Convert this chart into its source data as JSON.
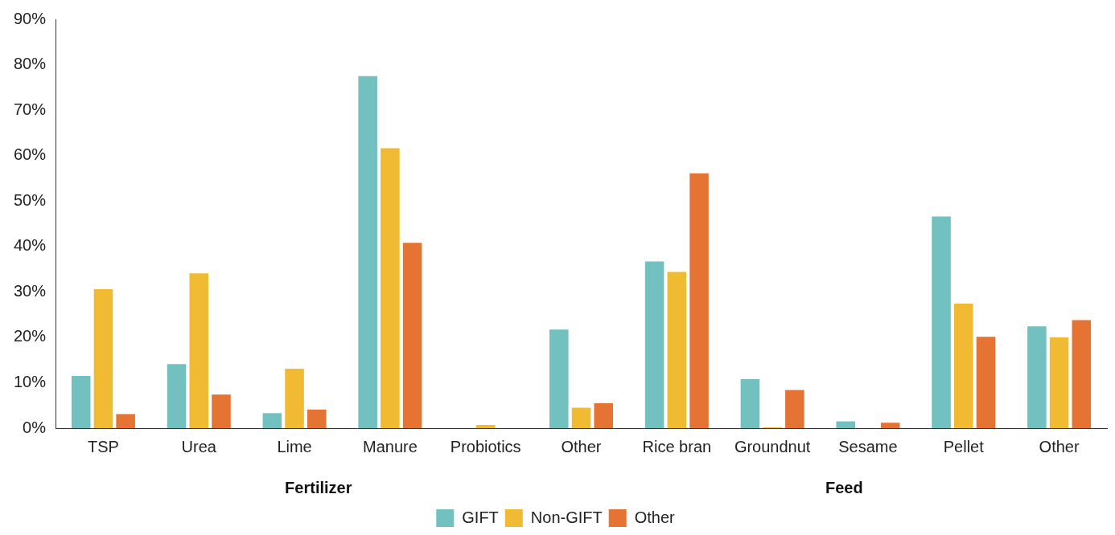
{
  "chart_data": {
    "type": "bar",
    "categories": [
      "TSP",
      "Urea",
      "Lime",
      "Manure",
      "Probiotics",
      "Other",
      "Rice bran",
      "Groundnut",
      "Sesame",
      "Pellet",
      "Other"
    ],
    "series": [
      {
        "name": "GIFT",
        "color": "#72c0bf",
        "values": [
          11.5,
          14.1,
          3.3,
          77.5,
          0,
          21.7,
          36.7,
          10.8,
          1.5,
          46.6,
          22.4
        ]
      },
      {
        "name": "Non-GIFT",
        "color": "#f0bb32",
        "values": [
          30.6,
          34.1,
          13.1,
          61.6,
          0.7,
          4.5,
          34.4,
          0.2,
          0,
          27.4,
          20.0
        ]
      },
      {
        "name": "Other",
        "color": "#e57434",
        "values": [
          3.1,
          7.4,
          4.1,
          40.8,
          0,
          5.5,
          56.1,
          8.4,
          1.2,
          20.1,
          23.8
        ]
      }
    ],
    "ylim": [
      0,
      90
    ],
    "yticks": [
      {
        "value": 0,
        "label": "0%"
      },
      {
        "value": 10,
        "label": "10%"
      },
      {
        "value": 20,
        "label": "20%"
      },
      {
        "value": 30,
        "label": "30%"
      },
      {
        "value": 40,
        "label": "40%"
      },
      {
        "value": 50,
        "label": "50%"
      },
      {
        "value": 60,
        "label": "60%"
      },
      {
        "value": 70,
        "label": "70%"
      },
      {
        "value": 80,
        "label": "80%"
      },
      {
        "value": 90,
        "label": "90%"
      }
    ],
    "annotations": [
      "Fertilizer",
      "Feed"
    ],
    "grid": false,
    "legend": "bottom"
  }
}
